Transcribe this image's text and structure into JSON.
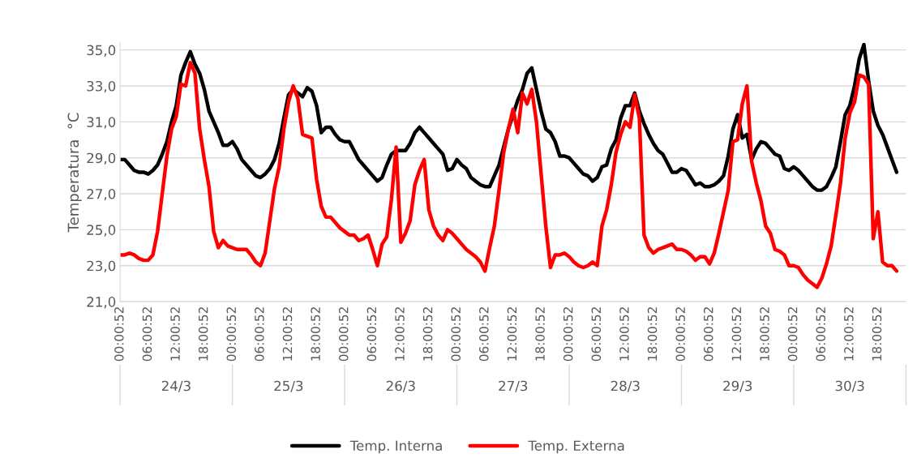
{
  "chart_data": {
    "type": "line",
    "ylabel": "Temperatura  °C",
    "categories": [
      "00:00:52",
      null,
      null,
      null,
      null,
      null,
      "06:00:52",
      null,
      null,
      null,
      null,
      null,
      "12:00:52",
      null,
      null,
      null,
      null,
      null,
      "18:00:52",
      null,
      null,
      null,
      null,
      null,
      "00:00:52",
      null,
      null,
      null,
      null,
      null,
      "06:00:52",
      null,
      null,
      null,
      null,
      null,
      "12:00:52",
      null,
      null,
      null,
      null,
      null,
      "18:00:52",
      null,
      null,
      null,
      null,
      null,
      "00:00:52",
      null,
      null,
      null,
      null,
      null,
      "06:00:52",
      null,
      null,
      null,
      null,
      null,
      "12:00:52",
      null,
      null,
      null,
      null,
      null,
      "18:00:52",
      null,
      null,
      null,
      null,
      null,
      "00:00:52",
      null,
      null,
      null,
      null,
      null,
      "06:00:52",
      null,
      null,
      null,
      null,
      null,
      "12:00:52",
      null,
      null,
      null,
      null,
      null,
      "18:00:52",
      null,
      null,
      null,
      null,
      null,
      "00:00:52",
      null,
      null,
      null,
      null,
      null,
      "06:00:52",
      null,
      null,
      null,
      null,
      null,
      "12:00:52",
      null,
      null,
      null,
      null,
      null,
      "18:00:52",
      null,
      null,
      null,
      null,
      null,
      "00:00:52",
      null,
      null,
      null,
      null,
      null,
      "06:00:52",
      null,
      null,
      null,
      null,
      null,
      "12:00:52",
      null,
      null,
      null,
      null,
      null,
      "18:00:52",
      null,
      null,
      null,
      null,
      null,
      "00:00:52",
      null,
      null,
      null,
      null,
      null,
      "06:00:52",
      null,
      null,
      null,
      null,
      null,
      "12:00:52",
      null,
      null,
      null,
      null,
      null,
      "18:00:52",
      null,
      null,
      null,
      null
    ],
    "annotations": [
      "24/3",
      "25/3",
      "26/3",
      "27/3",
      "28/3",
      "29/3",
      "30/3"
    ],
    "series": [
      {
        "name": "Temp. Interna",
        "color": "#000000",
        "values": [
          28.9,
          28.9,
          28.6,
          28.3,
          28.2,
          28.2,
          28.1,
          28.3,
          28.6,
          29.2,
          29.9,
          31.0,
          31.9,
          33.6,
          34.3,
          34.9,
          34.2,
          33.7,
          32.8,
          31.6,
          31.0,
          30.4,
          29.7,
          29.7,
          29.9,
          29.5,
          28.9,
          28.6,
          28.3,
          28.0,
          27.9,
          28.1,
          28.4,
          28.9,
          29.8,
          31.2,
          32.5,
          32.8,
          32.6,
          32.4,
          32.9,
          32.7,
          31.9,
          30.4,
          30.7,
          30.7,
          30.3,
          30.0,
          29.9,
          29.9,
          29.4,
          28.9,
          28.6,
          28.3,
          28.0,
          27.7,
          27.9,
          28.6,
          29.2,
          29.4,
          29.4,
          29.4,
          29.8,
          30.4,
          30.7,
          30.4,
          30.1,
          29.8,
          29.5,
          29.2,
          28.3,
          28.4,
          28.9,
          28.6,
          28.4,
          27.9,
          27.7,
          27.5,
          27.4,
          27.4,
          28.0,
          28.6,
          29.6,
          30.6,
          31.4,
          32.2,
          32.8,
          33.7,
          34.0,
          32.8,
          31.6,
          30.6,
          30.4,
          29.9,
          29.1,
          29.1,
          29.0,
          28.7,
          28.4,
          28.1,
          28.0,
          27.7,
          27.9,
          28.5,
          28.6,
          29.5,
          30.0,
          31.2,
          31.9,
          31.9,
          32.6,
          31.6,
          30.9,
          30.3,
          29.8,
          29.4,
          29.2,
          28.7,
          28.2,
          28.2,
          28.4,
          28.3,
          27.9,
          27.5,
          27.6,
          27.4,
          27.4,
          27.5,
          27.7,
          28.0,
          29.1,
          30.6,
          31.4,
          30.1,
          30.3,
          28.9,
          29.5,
          29.9,
          29.8,
          29.5,
          29.2,
          29.1,
          28.4,
          28.3,
          28.5,
          28.3,
          28.0,
          27.7,
          27.4,
          27.2,
          27.2,
          27.4,
          27.9,
          28.5,
          29.9,
          31.4,
          31.9,
          33.0,
          34.5,
          35.3,
          33.3,
          31.6,
          30.8,
          30.3,
          29.6,
          28.9,
          28.2
        ]
      },
      {
        "name": "Temp. Externa",
        "color": "#ff0000",
        "values": [
          23.6,
          23.6,
          23.7,
          23.6,
          23.4,
          23.3,
          23.3,
          23.6,
          24.9,
          27.0,
          29.1,
          30.6,
          31.3,
          33.1,
          33.0,
          34.3,
          33.7,
          30.6,
          28.9,
          27.4,
          24.9,
          24.0,
          24.4,
          24.1,
          24.0,
          23.9,
          23.9,
          23.9,
          23.6,
          23.2,
          23.0,
          23.7,
          25.5,
          27.3,
          28.5,
          30.6,
          32.1,
          33.0,
          32.3,
          30.3,
          30.2,
          30.1,
          27.8,
          26.3,
          25.7,
          25.7,
          25.4,
          25.1,
          24.9,
          24.7,
          24.7,
          24.4,
          24.5,
          24.7,
          23.9,
          23.0,
          24.2,
          24.6,
          26.7,
          29.6,
          24.3,
          24.8,
          25.5,
          27.5,
          28.3,
          28.9,
          26.1,
          25.2,
          24.7,
          24.4,
          25.0,
          24.8,
          24.5,
          24.2,
          23.9,
          23.7,
          23.5,
          23.2,
          22.7,
          24.0,
          25.2,
          27.2,
          29.3,
          30.6,
          31.7,
          30.4,
          32.6,
          32.0,
          32.8,
          31.0,
          28.1,
          25.2,
          22.9,
          23.6,
          23.6,
          23.7,
          23.5,
          23.2,
          23.0,
          22.9,
          23.0,
          23.2,
          23.0,
          25.2,
          26.1,
          27.5,
          29.3,
          30.3,
          31.0,
          30.7,
          32.5,
          31.2,
          24.7,
          24.0,
          23.7,
          23.9,
          24.0,
          24.1,
          24.2,
          23.9,
          23.9,
          23.8,
          23.6,
          23.3,
          23.5,
          23.5,
          23.1,
          23.7,
          24.8,
          26.0,
          27.2,
          29.9,
          30.0,
          32.0,
          33.0,
          28.8,
          27.6,
          26.6,
          25.2,
          24.8,
          23.9,
          23.8,
          23.6,
          23.0,
          23.0,
          22.9,
          22.5,
          22.2,
          22.0,
          21.8,
          22.3,
          23.1,
          24.1,
          25.8,
          27.6,
          30.1,
          31.5,
          32.1,
          33.6,
          33.5,
          33.1,
          24.5,
          26.0,
          23.2,
          23.0,
          23.0,
          22.7
        ]
      }
    ],
    "ylim": [
      21,
      35.4
    ],
    "yticks": [
      {
        "value": 21,
        "label": "21,0"
      },
      {
        "value": 23,
        "label": "23,0"
      },
      {
        "value": 25,
        "label": "25,0"
      },
      {
        "value": 27,
        "label": "27,0"
      },
      {
        "value": 29,
        "label": "29,0"
      },
      {
        "value": 31,
        "label": "31,0"
      },
      {
        "value": 33,
        "label": "33,0"
      },
      {
        "value": 35,
        "label": "35,0"
      }
    ],
    "grid": "y",
    "legend": "bottom",
    "marker": "none",
    "line_style": "solid"
  }
}
